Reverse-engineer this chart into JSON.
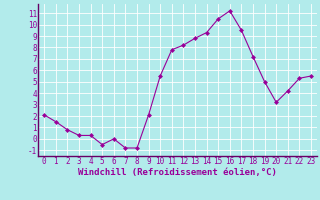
{
  "x": [
    0,
    1,
    2,
    3,
    4,
    5,
    6,
    7,
    8,
    9,
    10,
    11,
    12,
    13,
    14,
    15,
    16,
    17,
    18,
    19,
    20,
    21,
    22,
    23
  ],
  "y": [
    2.1,
    1.5,
    0.8,
    0.3,
    0.3,
    -0.5,
    0.0,
    -0.8,
    -0.8,
    2.1,
    5.5,
    7.8,
    8.2,
    8.8,
    9.3,
    10.5,
    11.2,
    9.5,
    7.2,
    5.0,
    3.2,
    4.2,
    5.3,
    5.5
  ],
  "line_color": "#990099",
  "marker": "D",
  "marker_size": 2,
  "bg_color": "#b2ebeb",
  "grid_color": "#ffffff",
  "xlabel": "Windchill (Refroidissement éolien,°C)",
  "xlabel_color": "#990099",
  "tick_color": "#990099",
  "ylim": [
    -1.5,
    11.8
  ],
  "xlim": [
    -0.5,
    23.5
  ],
  "yticks": [
    -1,
    0,
    1,
    2,
    3,
    4,
    5,
    6,
    7,
    8,
    9,
    10,
    11
  ],
  "xticks": [
    0,
    1,
    2,
    3,
    4,
    5,
    6,
    7,
    8,
    9,
    10,
    11,
    12,
    13,
    14,
    15,
    16,
    17,
    18,
    19,
    20,
    21,
    22,
    23
  ],
  "font_size": 5.5,
  "label_font_size": 6.5,
  "line_width": 0.8
}
